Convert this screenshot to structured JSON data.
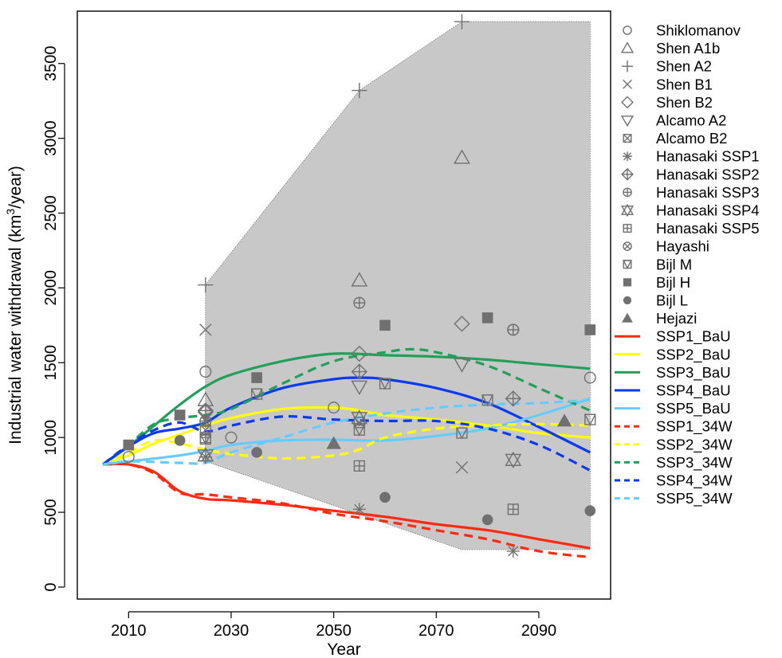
{
  "chart_data": {
    "type": "line",
    "xlabel": "Year",
    "ylabel": "Industrial water withdrawal (km3/year)",
    "ylabel_parts": {
      "base": "Industrial water withdrawal (km",
      "superscript": "3",
      "tail": "/year)"
    },
    "xlim": [
      2000,
      2104
    ],
    "ylim": [
      -80,
      3850
    ],
    "x_ticks": [
      2010,
      2030,
      2050,
      2070,
      2090
    ],
    "y_ticks": [
      0,
      500,
      1000,
      1500,
      2000,
      2500,
      3000,
      3500
    ],
    "grid": false,
    "legend_position": "right",
    "envelope": {
      "color": "#c8c8c8",
      "upper": [
        [
          2025,
          2020
        ],
        [
          2055,
          3320
        ],
        [
          2075,
          3780
        ],
        [
          2100,
          3780
        ]
      ],
      "lower": [
        [
          2100,
          250
        ],
        [
          2075,
          250
        ],
        [
          2025,
          840
        ]
      ]
    },
    "line_series": [
      {
        "name": "SSP1_BaU",
        "color": "#ff2a10",
        "dash": "solid",
        "x": [
          2005,
          2010,
          2015,
          2020,
          2025,
          2030,
          2040,
          2050,
          2060,
          2070,
          2080,
          2090,
          2100
        ],
        "y": [
          820,
          820,
          770,
          640,
          590,
          580,
          550,
          510,
          470,
          420,
          380,
          320,
          260
        ]
      },
      {
        "name": "SSP2_BaU",
        "color": "#ffff00",
        "dash": "solid",
        "x": [
          2005,
          2010,
          2015,
          2020,
          2025,
          2030,
          2040,
          2050,
          2055,
          2060,
          2070,
          2080,
          2090,
          2100
        ],
        "y": [
          820,
          880,
          960,
          1020,
          1080,
          1130,
          1190,
          1200,
          1180,
          1150,
          1120,
          1080,
          1030,
          1000
        ]
      },
      {
        "name": "SSP3_BaU",
        "color": "#22a05a",
        "dash": "solid",
        "x": [
          2005,
          2010,
          2015,
          2020,
          2025,
          2030,
          2040,
          2050,
          2060,
          2070,
          2080,
          2090,
          2100
        ],
        "y": [
          820,
          940,
          1080,
          1220,
          1340,
          1420,
          1510,
          1560,
          1550,
          1540,
          1520,
          1490,
          1460
        ]
      },
      {
        "name": "SSP4_BaU",
        "color": "#0a3af0",
        "dash": "solid",
        "x": [
          2005,
          2010,
          2015,
          2020,
          2025,
          2030,
          2040,
          2050,
          2055,
          2060,
          2070,
          2080,
          2090,
          2100
        ],
        "y": [
          820,
          940,
          1030,
          1060,
          1100,
          1200,
          1330,
          1390,
          1400,
          1390,
          1330,
          1230,
          1070,
          900
        ]
      },
      {
        "name": "SSP5_BaU",
        "color": "#66ccff",
        "dash": "solid",
        "x": [
          2005,
          2010,
          2020,
          2025,
          2030,
          2040,
          2050,
          2060,
          2070,
          2080,
          2090,
          2100
        ],
        "y": [
          820,
          840,
          880,
          910,
          950,
          980,
          985,
          980,
          1010,
          1060,
          1150,
          1260
        ]
      },
      {
        "name": "SSP1_34W",
        "color": "#ff2a10",
        "dash": "dashed",
        "x": [
          2005,
          2010,
          2015,
          2020,
          2025,
          2030,
          2040,
          2050,
          2060,
          2070,
          2080,
          2090,
          2100
        ],
        "y": [
          820,
          820,
          760,
          630,
          620,
          600,
          560,
          490,
          440,
          380,
          320,
          240,
          200
        ]
      },
      {
        "name": "SSP2_34W",
        "color": "#ffff00",
        "dash": "dashed",
        "x": [
          2005,
          2010,
          2015,
          2020,
          2025,
          2030,
          2040,
          2050,
          2055,
          2060,
          2070,
          2080,
          2090,
          2100
        ],
        "y": [
          820,
          900,
          980,
          960,
          920,
          890,
          860,
          880,
          920,
          1000,
          1060,
          1080,
          1090,
          1080
        ]
      },
      {
        "name": "SSP3_34W",
        "color": "#22a05a",
        "dash": "dashed",
        "x": [
          2005,
          2010,
          2015,
          2020,
          2025,
          2030,
          2040,
          2050,
          2060,
          2065,
          2070,
          2080,
          2090,
          2100
        ],
        "y": [
          820,
          950,
          1090,
          1130,
          1150,
          1190,
          1360,
          1510,
          1570,
          1590,
          1570,
          1480,
          1330,
          1180
        ]
      },
      {
        "name": "SSP4_34W",
        "color": "#0a3af0",
        "dash": "dashed",
        "x": [
          2005,
          2010,
          2015,
          2020,
          2025,
          2030,
          2040,
          2050,
          2060,
          2070,
          2080,
          2090,
          2100
        ],
        "y": [
          820,
          950,
          1050,
          1100,
          1040,
          1080,
          1140,
          1120,
          1110,
          1110,
          1060,
          950,
          780
        ]
      },
      {
        "name": "SSP5_34W",
        "color": "#66ccff",
        "dash": "dashed",
        "x": [
          2005,
          2010,
          2020,
          2025,
          2030,
          2040,
          2050,
          2060,
          2070,
          2080,
          2090,
          2100
        ],
        "y": [
          820,
          840,
          830,
          830,
          900,
          1000,
          1100,
          1160,
          1200,
          1220,
          1230,
          1250
        ]
      }
    ],
    "point_series": [
      {
        "name": "Shiklomanov",
        "symbol": "circle-open",
        "points": [
          [
            2010,
            870
          ],
          [
            2025,
            1440
          ],
          [
            2030,
            1000
          ],
          [
            2050,
            1200
          ],
          [
            2085,
            1720
          ],
          [
            2100,
            1400
          ]
        ]
      },
      {
        "name": "Shen A1b",
        "symbol": "triangle-up-open",
        "points": [
          [
            2025,
            1250
          ],
          [
            2055,
            2050
          ],
          [
            2075,
            2870
          ]
        ]
      },
      {
        "name": "Shen A2",
        "symbol": "plus",
        "points": [
          [
            2025,
            2020
          ],
          [
            2055,
            3320
          ],
          [
            2075,
            3780
          ]
        ]
      },
      {
        "name": "Shen B1",
        "symbol": "x",
        "points": [
          [
            2025,
            1720
          ],
          [
            2075,
            800
          ]
        ]
      },
      {
        "name": "Shen B2",
        "symbol": "diamond-open",
        "points": [
          [
            2025,
            1170
          ],
          [
            2055,
            1560
          ],
          [
            2075,
            1760
          ]
        ]
      },
      {
        "name": "Alcamo A2",
        "symbol": "triangle-down-open",
        "points": [
          [
            2055,
            1340
          ],
          [
            2075,
            1490
          ]
        ]
      },
      {
        "name": "Alcamo B2",
        "symbol": "square-x",
        "points": [
          [
            2025,
            1050
          ],
          [
            2055,
            1100
          ]
        ]
      },
      {
        "name": "Hanasaki SSP1",
        "symbol": "asterisk",
        "points": [
          [
            2025,
            870
          ],
          [
            2055,
            520
          ],
          [
            2085,
            240
          ]
        ]
      },
      {
        "name": "Hanasaki SSP2",
        "symbol": "diamond-plus",
        "points": [
          [
            2025,
            1180
          ],
          [
            2055,
            1440
          ],
          [
            2085,
            1260
          ]
        ]
      },
      {
        "name": "Hanasaki SSP3",
        "symbol": "circle-plus",
        "points": [
          [
            2025,
            1110
          ],
          [
            2055,
            1900
          ],
          [
            2085,
            1720
          ]
        ]
      },
      {
        "name": "Hanasaki SSP4",
        "symbol": "star-of-david",
        "points": [
          [
            2025,
            880
          ],
          [
            2055,
            1130
          ],
          [
            2085,
            850
          ]
        ]
      },
      {
        "name": "Hanasaki SSP5",
        "symbol": "square-plus",
        "points": [
          [
            2025,
            1000
          ],
          [
            2055,
            810
          ],
          [
            2085,
            520
          ]
        ]
      },
      {
        "name": "Hayashi",
        "symbol": "circle-x",
        "points": [
          [
            2025,
            1110
          ]
        ]
      },
      {
        "name": "Bijl M",
        "symbol": "square-triangle",
        "points": [
          [
            2025,
            990
          ],
          [
            2035,
            1290
          ],
          [
            2055,
            1050
          ],
          [
            2060,
            1360
          ],
          [
            2075,
            1030
          ],
          [
            2080,
            1250
          ],
          [
            2100,
            1120
          ]
        ]
      },
      {
        "name": "Bijl H",
        "symbol": "square-filled",
        "points": [
          [
            2010,
            950
          ],
          [
            2020,
            1150
          ],
          [
            2035,
            1400
          ],
          [
            2060,
            1750
          ],
          [
            2080,
            1800
          ],
          [
            2100,
            1720
          ]
        ]
      },
      {
        "name": "Bijl L",
        "symbol": "circle-filled",
        "points": [
          [
            2020,
            980
          ],
          [
            2035,
            900
          ],
          [
            2060,
            600
          ],
          [
            2080,
            450
          ],
          [
            2100,
            510
          ]
        ]
      },
      {
        "name": "Hejazi",
        "symbol": "triangle-filled",
        "points": [
          [
            2050,
            960
          ],
          [
            2095,
            1110
          ]
        ]
      }
    ],
    "legend": [
      {
        "label": "Shiklomanov",
        "kind": "point",
        "symbol": "circle-open"
      },
      {
        "label": "Shen A1b",
        "kind": "point",
        "symbol": "triangle-up-open"
      },
      {
        "label": "Shen A2",
        "kind": "point",
        "symbol": "plus"
      },
      {
        "label": "Shen B1",
        "kind": "point",
        "symbol": "x"
      },
      {
        "label": "Shen B2",
        "kind": "point",
        "symbol": "diamond-open"
      },
      {
        "label": "Alcamo A2",
        "kind": "point",
        "symbol": "triangle-down-open"
      },
      {
        "label": "Alcamo B2",
        "kind": "point",
        "symbol": "square-x"
      },
      {
        "label": "Hanasaki SSP1",
        "kind": "point",
        "symbol": "asterisk"
      },
      {
        "label": "Hanasaki SSP2",
        "kind": "point",
        "symbol": "diamond-plus"
      },
      {
        "label": "Hanasaki SSP3",
        "kind": "point",
        "symbol": "circle-plus"
      },
      {
        "label": "Hanasaki SSP4",
        "kind": "point",
        "symbol": "star-of-david"
      },
      {
        "label": "Hanasaki SSP5",
        "kind": "point",
        "symbol": "square-plus"
      },
      {
        "label": "Hayashi",
        "kind": "point",
        "symbol": "circle-x"
      },
      {
        "label": "Bijl M",
        "kind": "point",
        "symbol": "square-triangle"
      },
      {
        "label": "Bijl H",
        "kind": "point",
        "symbol": "square-filled"
      },
      {
        "label": "Bijl L",
        "kind": "point",
        "symbol": "circle-filled"
      },
      {
        "label": "Hejazi",
        "kind": "point",
        "symbol": "triangle-filled"
      },
      {
        "label": "SSP1_BaU",
        "kind": "line",
        "color": "#ff2a10",
        "dash": "solid"
      },
      {
        "label": "SSP2_BaU",
        "kind": "line",
        "color": "#ffff00",
        "dash": "solid"
      },
      {
        "label": "SSP3_BaU",
        "kind": "line",
        "color": "#22a05a",
        "dash": "solid"
      },
      {
        "label": "SSP4_BaU",
        "kind": "line",
        "color": "#0a3af0",
        "dash": "solid"
      },
      {
        "label": "SSP5_BaU",
        "kind": "line",
        "color": "#66ccff",
        "dash": "solid"
      },
      {
        "label": "SSP1_34W",
        "kind": "line",
        "color": "#ff2a10",
        "dash": "dashed"
      },
      {
        "label": "SSP2_34W",
        "kind": "line",
        "color": "#ffff00",
        "dash": "dashed"
      },
      {
        "label": "SSP3_34W",
        "kind": "line",
        "color": "#22a05a",
        "dash": "dashed"
      },
      {
        "label": "SSP4_34W",
        "kind": "line",
        "color": "#0a3af0",
        "dash": "dashed"
      },
      {
        "label": "SSP5_34W",
        "kind": "line",
        "color": "#66ccff",
        "dash": "dashed"
      }
    ],
    "marker_color": "#707070"
  }
}
